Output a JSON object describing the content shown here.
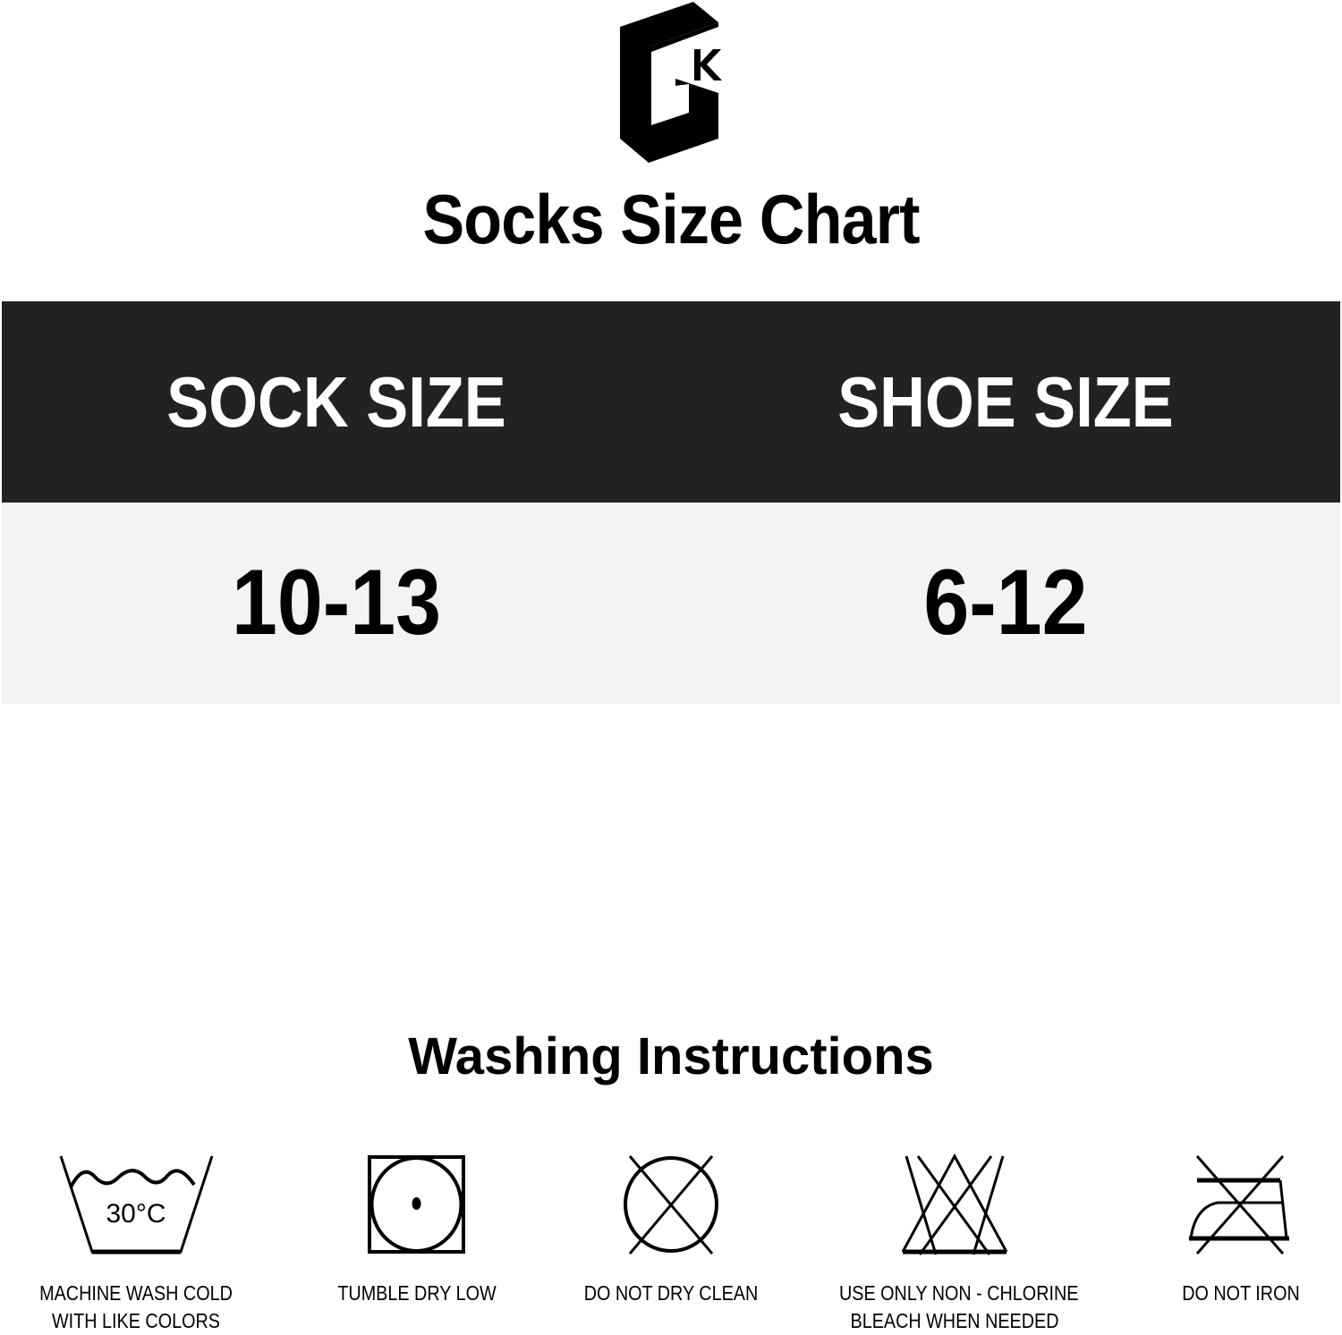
{
  "logo": {
    "text": "GK",
    "icon": "gk-logo"
  },
  "title": "Socks Size Chart",
  "table": {
    "headers": [
      "SOCK SIZE",
      "SHOE SIZE"
    ],
    "rows": [
      [
        "10-13",
        "6-12"
      ]
    ],
    "header_bg": "#222222",
    "row_bg": "#f3f3f3"
  },
  "washing": {
    "title": "Washing Instructions",
    "items": [
      {
        "icon": "wash-30-icon",
        "temp": "30°C",
        "lines": [
          "MACHINE WASH COLD",
          "WITH LIKE COLORS"
        ]
      },
      {
        "icon": "tumble-dry-low-icon",
        "lines": [
          "TUMBLE DRY LOW"
        ]
      },
      {
        "icon": "do-not-dry-clean-icon",
        "lines": [
          "DO NOT DRY CLEAN"
        ]
      },
      {
        "icon": "non-chlorine-bleach-icon",
        "lines": [
          "USE ONLY NON - CHLORINE",
          "BLEACH WHEN NEEDED"
        ]
      },
      {
        "icon": "do-not-iron-icon",
        "lines": [
          "DO NOT IRON"
        ]
      }
    ]
  }
}
